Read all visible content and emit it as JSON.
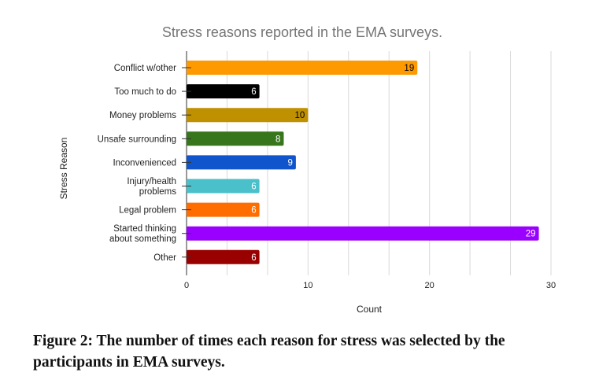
{
  "chart_data": {
    "type": "bar",
    "orientation": "horizontal",
    "title": "Stress reasons reported in the EMA surveys.",
    "xlabel": "Count",
    "ylabel": "Stress Reason",
    "xlim": [
      0,
      30
    ],
    "xticks": [
      0,
      10,
      20,
      30
    ],
    "grid": true,
    "categories": [
      "Conflict w/other",
      "Too much to do",
      "Money problems",
      "Unsafe surrounding",
      "Inconvenienced",
      "Injury/health problems",
      "Legal problem",
      "Started thinking about something",
      "Other"
    ],
    "category_lines": [
      [
        "Conflict w/other"
      ],
      [
        "Too much to do"
      ],
      [
        "Money problems"
      ],
      [
        "Unsafe surrounding"
      ],
      [
        "Inconvenienced"
      ],
      [
        "Injury/health",
        "problems"
      ],
      [
        "Legal problem"
      ],
      [
        "Started thinking",
        "about something"
      ],
      [
        "Other"
      ]
    ],
    "values": [
      19,
      6,
      10,
      8,
      9,
      6,
      6,
      29,
      6
    ],
    "colors": [
      "#ff9900",
      "#000000",
      "#bf9000",
      "#38761d",
      "#1155cc",
      "#4ac0cb",
      "#ff6d01",
      "#9900ff",
      "#990000"
    ],
    "label_colors": [
      "#000000",
      "#ffffff",
      "#000000",
      "#ffffff",
      "#ffffff",
      "#ffffff",
      "#ffffff",
      "#ffffff",
      "#ffffff"
    ]
  },
  "caption": "Figure 2: The number of times each reason for stress was selected by the participants in EMA surveys."
}
